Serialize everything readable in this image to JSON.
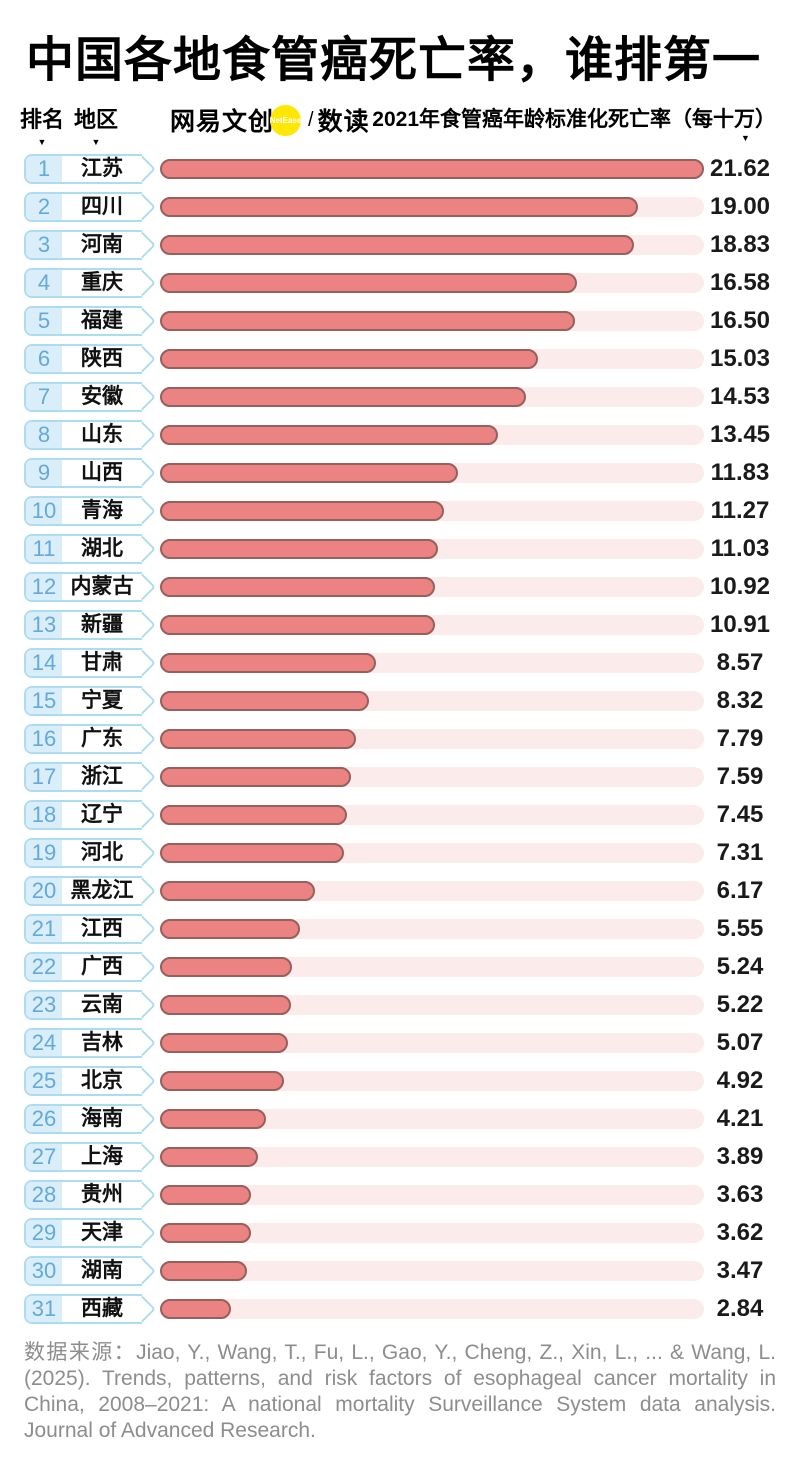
{
  "title": "中国各地食管癌死亡率，谁排第一",
  "header": {
    "rank_label": "排名",
    "region_label": "地区",
    "metric_label": "2021年食管癌年龄标准化死亡率（每十万）",
    "sort_arrow": "▼",
    "logo": {
      "part1": "网易文创",
      "badge": "NetEase",
      "separator": "/",
      "part2": "数读"
    }
  },
  "chart_data": {
    "type": "bar",
    "orientation": "horizontal",
    "title": "中国各地食管癌死亡率，谁排第一",
    "value_axis_label": "2021年食管癌年龄标准化死亡率（每十万）",
    "max_value": 21.62,
    "xlim": [
      0,
      21.62
    ],
    "grid": false,
    "legend": false,
    "rows": [
      {
        "rank": 1,
        "region": "江苏",
        "value": 21.62,
        "label": "21.62"
      },
      {
        "rank": 2,
        "region": "四川",
        "value": 19.0,
        "label": "19.00"
      },
      {
        "rank": 3,
        "region": "河南",
        "value": 18.83,
        "label": "18.83"
      },
      {
        "rank": 4,
        "region": "重庆",
        "value": 16.58,
        "label": "16.58"
      },
      {
        "rank": 5,
        "region": "福建",
        "value": 16.5,
        "label": "16.50"
      },
      {
        "rank": 6,
        "region": "陕西",
        "value": 15.03,
        "label": "15.03"
      },
      {
        "rank": 7,
        "region": "安徽",
        "value": 14.53,
        "label": "14.53"
      },
      {
        "rank": 8,
        "region": "山东",
        "value": 13.45,
        "label": "13.45"
      },
      {
        "rank": 9,
        "region": "山西",
        "value": 11.83,
        "label": "11.83"
      },
      {
        "rank": 10,
        "region": "青海",
        "value": 11.27,
        "label": "11.27"
      },
      {
        "rank": 11,
        "region": "湖北",
        "value": 11.03,
        "label": "11.03"
      },
      {
        "rank": 12,
        "region": "内蒙古",
        "value": 10.92,
        "label": "10.92"
      },
      {
        "rank": 13,
        "region": "新疆",
        "value": 10.91,
        "label": "10.91"
      },
      {
        "rank": 14,
        "region": "甘肃",
        "value": 8.57,
        "label": "8.57"
      },
      {
        "rank": 15,
        "region": "宁夏",
        "value": 8.32,
        "label": "8.32"
      },
      {
        "rank": 16,
        "region": "广东",
        "value": 7.79,
        "label": "7.79"
      },
      {
        "rank": 17,
        "region": "浙江",
        "value": 7.59,
        "label": "7.59"
      },
      {
        "rank": 18,
        "region": "辽宁",
        "value": 7.45,
        "label": "7.45"
      },
      {
        "rank": 19,
        "region": "河北",
        "value": 7.31,
        "label": "7.31"
      },
      {
        "rank": 20,
        "region": "黑龙江",
        "value": 6.17,
        "label": "6.17"
      },
      {
        "rank": 21,
        "region": "江西",
        "value": 5.55,
        "label": "5.55"
      },
      {
        "rank": 22,
        "region": "广西",
        "value": 5.24,
        "label": "5.24"
      },
      {
        "rank": 23,
        "region": "云南",
        "value": 5.22,
        "label": "5.22"
      },
      {
        "rank": 24,
        "region": "吉林",
        "value": 5.07,
        "label": "5.07"
      },
      {
        "rank": 25,
        "region": "北京",
        "value": 4.92,
        "label": "4.92"
      },
      {
        "rank": 26,
        "region": "海南",
        "value": 4.21,
        "label": "4.21"
      },
      {
        "rank": 27,
        "region": "上海",
        "value": 3.89,
        "label": "3.89"
      },
      {
        "rank": 28,
        "region": "贵州",
        "value": 3.63,
        "label": "3.63"
      },
      {
        "rank": 29,
        "region": "天津",
        "value": 3.62,
        "label": "3.62"
      },
      {
        "rank": 30,
        "region": "湖南",
        "value": 3.47,
        "label": "3.47"
      },
      {
        "rank": 31,
        "region": "西藏",
        "value": 2.84,
        "label": "2.84"
      }
    ]
  },
  "footer": {
    "source": "数据来源：Jiao, Y., Wang, T., Fu, L., Gao, Y., Cheng, Z., Xin, L., ... & Wang, L. (2025). Trends, patterns, and risk factors of esophageal cancer mortality in China, 2008–2021: A national mortality Surveillance System data analysis. Journal of Advanced Research."
  },
  "colors": {
    "bar_fill": "#EC8383",
    "bar_border": "#96605C",
    "track": "#FBECEB",
    "badge_border": "#ACDCF1",
    "rank_background": "#D9EEF9",
    "rank_text": "#64A9DB",
    "logo_yellow": "#FFE603",
    "footer_text": "#8D8D8D",
    "title_text": "#000000"
  }
}
